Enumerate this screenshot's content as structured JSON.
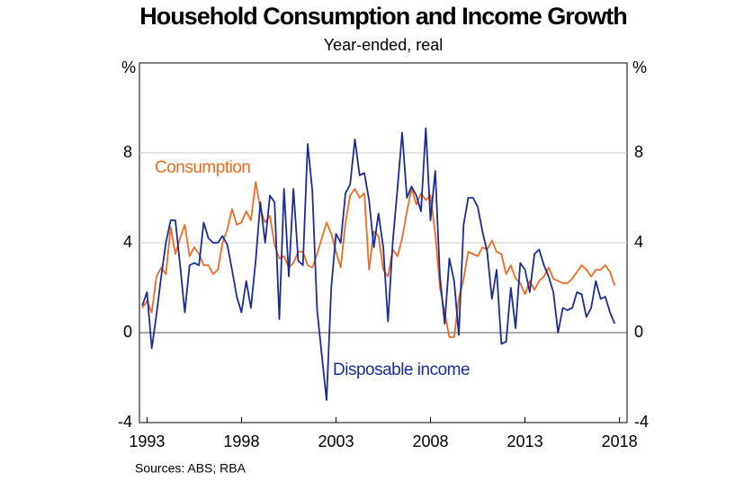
{
  "chart_data": {
    "type": "line",
    "title": "Household Consumption and Income Growth",
    "subtitle": "Year-ended, real",
    "y_unit": "%",
    "source": "Sources: ABS; RBA",
    "x": [
      1992.75,
      1993,
      1993.25,
      1993.5,
      1993.75,
      1994,
      1994.25,
      1994.5,
      1994.75,
      1995,
      1995.25,
      1995.5,
      1995.75,
      1996,
      1996.25,
      1996.5,
      1996.75,
      1997,
      1997.25,
      1997.5,
      1997.75,
      1998,
      1998.25,
      1998.5,
      1998.75,
      1999,
      1999.25,
      1999.5,
      1999.75,
      2000,
      2000.25,
      2000.5,
      2000.75,
      2001,
      2001.25,
      2001.5,
      2001.75,
      2002,
      2002.25,
      2002.5,
      2002.75,
      2003,
      2003.25,
      2003.5,
      2003.75,
      2004,
      2004.25,
      2004.5,
      2004.75,
      2005,
      2005.25,
      2005.5,
      2005.75,
      2006,
      2006.25,
      2006.5,
      2006.75,
      2007,
      2007.25,
      2007.5,
      2007.75,
      2008,
      2008.25,
      2008.5,
      2008.75,
      2009,
      2009.25,
      2009.5,
      2009.75,
      2010,
      2010.25,
      2010.5,
      2010.75,
      2011,
      2011.25,
      2011.5,
      2011.75,
      2012,
      2012.25,
      2012.5,
      2012.75,
      2013,
      2013.25,
      2013.5,
      2013.75,
      2014,
      2014.25,
      2014.5,
      2014.75,
      2015,
      2015.25,
      2015.5,
      2015.75,
      2016,
      2016.25,
      2016.5,
      2016.75,
      2017,
      2017.25,
      2017.5,
      2017.75
    ],
    "series": [
      {
        "name": "Consumption",
        "color": "#f26a21",
        "values": [
          1.1,
          1.4,
          0.9,
          2.5,
          2.9,
          2.6,
          4.7,
          3.5,
          4.2,
          4.8,
          3.4,
          3.8,
          3.5,
          3.0,
          3.0,
          2.6,
          2.8,
          4.0,
          4.6,
          5.5,
          4.8,
          4.9,
          5.4,
          5.0,
          6.7,
          5.5,
          4.9,
          5.2,
          3.9,
          3.3,
          3.4,
          2.9,
          3.1,
          3.6,
          3.6,
          3.0,
          2.9,
          3.5,
          4.2,
          4.9,
          4.4,
          3.6,
          2.9,
          4.9,
          6.1,
          6.4,
          6.0,
          6.2,
          2.8,
          4.5,
          4.3,
          2.8,
          2.5,
          3.7,
          3.4,
          4.2,
          5.4,
          6.4,
          5.7,
          6.2,
          5.9,
          6.1,
          4.4,
          2.0,
          0.9,
          -0.2,
          -0.2,
          1.5,
          2.4,
          3.6,
          3.5,
          3.4,
          3.8,
          3.7,
          4.1,
          3.6,
          3.5,
          2.6,
          3.0,
          2.4,
          2.2,
          1.7,
          2.3,
          1.9,
          2.3,
          2.5,
          2.9,
          2.4,
          2.3,
          2.2,
          2.2,
          2.4,
          2.7,
          3.0,
          2.8,
          2.5,
          2.8,
          2.8,
          3.0,
          2.7,
          2.1
        ]
      },
      {
        "name": "Disposable income",
        "color": "#1b2c98",
        "values": [
          1.2,
          1.8,
          -0.7,
          0.8,
          2.5,
          4.0,
          5.0,
          5.0,
          3.0,
          0.9,
          3.0,
          3.1,
          3.0,
          4.9,
          4.2,
          4.0,
          4.0,
          4.3,
          3.9,
          2.8,
          1.6,
          0.9,
          2.3,
          1.1,
          3.2,
          5.8,
          4.0,
          6.1,
          5.8,
          0.6,
          6.4,
          2.5,
          6.4,
          3.2,
          3.0,
          8.4,
          6.3,
          1.0,
          -1.0,
          -3.0,
          2.0,
          4.4,
          4.0,
          6.2,
          6.6,
          8.6,
          7.0,
          7.1,
          5.9,
          3.8,
          5.3,
          3.8,
          0.5,
          4.0,
          6.4,
          8.9,
          6.0,
          6.5,
          6.1,
          5.4,
          9.1,
          5.0,
          7.2,
          2.5,
          0.4,
          3.3,
          2.3,
          -0.1,
          4.8,
          6.0,
          6.0,
          5.6,
          4.5,
          3.6,
          1.5,
          2.8,
          -0.5,
          -0.4,
          2.0,
          0.2,
          3.1,
          2.8,
          1.8,
          3.5,
          3.7,
          3.0,
          2.5,
          1.8,
          0.0,
          1.1,
          1.0,
          1.1,
          1.8,
          1.7,
          0.7,
          1.1,
          2.3,
          1.5,
          1.6,
          0.9,
          0.4
        ]
      }
    ],
    "xlim": [
      1992.6,
      2018.4
    ],
    "xticks": [
      1993,
      1998,
      2003,
      2008,
      2013,
      2018
    ],
    "ylim": [
      -4,
      12
    ],
    "yticks": [
      -4,
      0,
      4,
      8
    ],
    "grid": true
  }
}
